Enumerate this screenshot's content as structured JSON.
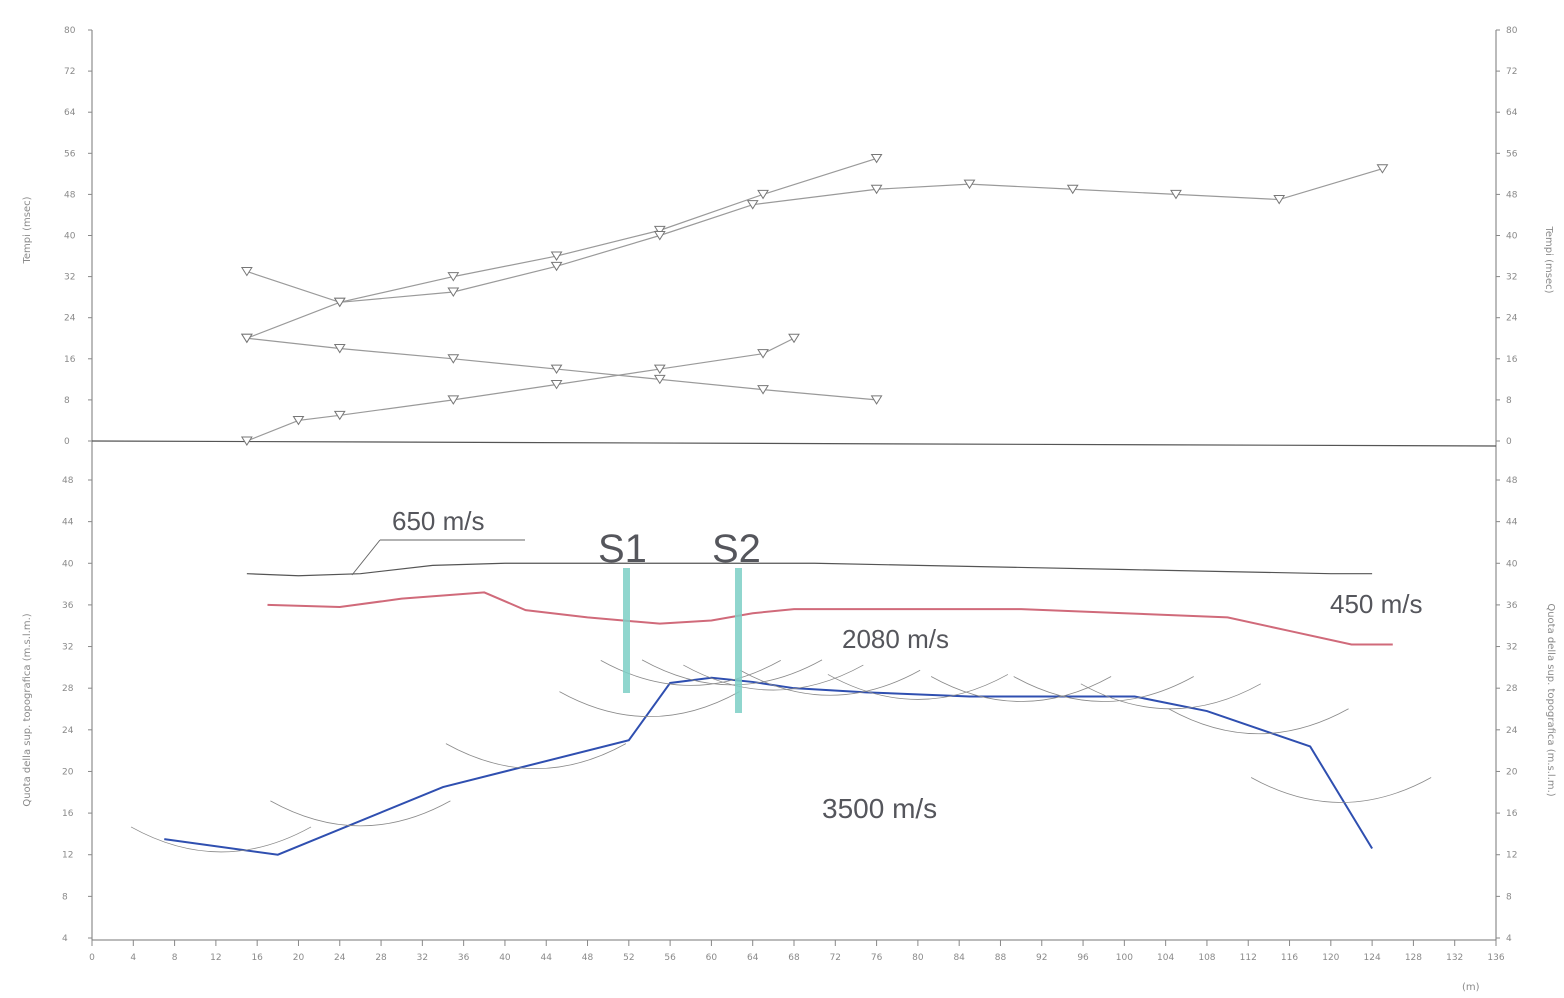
{
  "chart_data": [
    {
      "type": "scatter",
      "ylabel": "Tempi (msec)",
      "ylabel_right": "Tempi (msec)",
      "ylim": [
        0,
        80
      ],
      "xlim": [
        0,
        136
      ],
      "yticks": [
        0,
        8,
        16,
        24,
        32,
        40,
        48,
        56,
        64,
        72,
        80
      ],
      "marker": "triangle-down",
      "grid": false,
      "series": [
        {
          "color": "#9a9a9a",
          "x": [
            15,
            20,
            24,
            35,
            45,
            55,
            65,
            68
          ],
          "y": [
            0,
            4,
            5,
            8,
            11,
            14,
            17,
            20
          ]
        },
        {
          "color": "#9a9a9a",
          "x": [
            15,
            24,
            35,
            45,
            55,
            65,
            76
          ],
          "y": [
            20,
            27,
            32,
            36,
            41,
            48,
            55
          ]
        },
        {
          "color": "#9a9a9a",
          "x": [
            15,
            24,
            35,
            45,
            55,
            64,
            76,
            85,
            95,
            105,
            115,
            125
          ],
          "y": [
            33,
            27,
            29,
            34,
            40,
            46,
            49,
            50,
            49,
            48,
            47,
            53
          ]
        },
        {
          "color": "#9a9a9a",
          "x": [
            15,
            24,
            35,
            45,
            55,
            65,
            76
          ],
          "y": [
            20,
            18,
            16,
            14,
            12,
            10,
            8
          ]
        }
      ]
    },
    {
      "type": "line",
      "ylabel": "Quota della sup. topografica (m.s.l.m.)",
      "ylabel_right": "Quota della sup. topografica (m.s.l.m.)",
      "xlabel": "(m)",
      "xlim": [
        0,
        136
      ],
      "ylim": [
        4,
        48
      ],
      "xticks": [
        0,
        4,
        8,
        12,
        16,
        20,
        24,
        28,
        32,
        36,
        40,
        44,
        48,
        52,
        56,
        60,
        64,
        68,
        72,
        76,
        80,
        84,
        88,
        92,
        96,
        100,
        104,
        108,
        112,
        116,
        120,
        124,
        128,
        132,
        136
      ],
      "yticks": [
        4,
        8,
        12,
        16,
        20,
        24,
        28,
        32,
        36,
        40,
        44,
        48
      ],
      "series": [
        {
          "color": "#555555",
          "x": [
            15,
            20,
            26,
            33,
            40,
            50,
            60,
            70,
            80,
            90,
            100,
            110,
            120,
            124
          ],
          "y": [
            39,
            38.8,
            39,
            39.8,
            40,
            40,
            40,
            40,
            39.8,
            39.6,
            39.4,
            39.2,
            39,
            39
          ]
        },
        {
          "color": "#d06a7a",
          "x": [
            17,
            24,
            30,
            38,
            42,
            48,
            55,
            60,
            64,
            68,
            80,
            90,
            100,
            110,
            116,
            122,
            126
          ],
          "y": [
            36,
            35.8,
            36.6,
            37.2,
            35.5,
            34.8,
            34.2,
            34.5,
            35.2,
            35.6,
            35.6,
            35.6,
            35.2,
            34.8,
            33.5,
            32.2,
            32.2
          ]
        },
        {
          "color": "#2f4fb0",
          "x": [
            7,
            18,
            34,
            52,
            56,
            60,
            64,
            68,
            75,
            85,
            95,
            101,
            108,
            118,
            124
          ],
          "y": [
            13.5,
            12,
            18.5,
            23,
            28.5,
            29,
            28.6,
            28,
            27.6,
            27.2,
            27.2,
            27.2,
            25.8,
            22.4,
            12.6
          ]
        }
      ],
      "labels": [
        "650 m/s",
        "450 m/s",
        "2080 m/s",
        "3500 m/s",
        "S1",
        "S2"
      ]
    }
  ]
}
